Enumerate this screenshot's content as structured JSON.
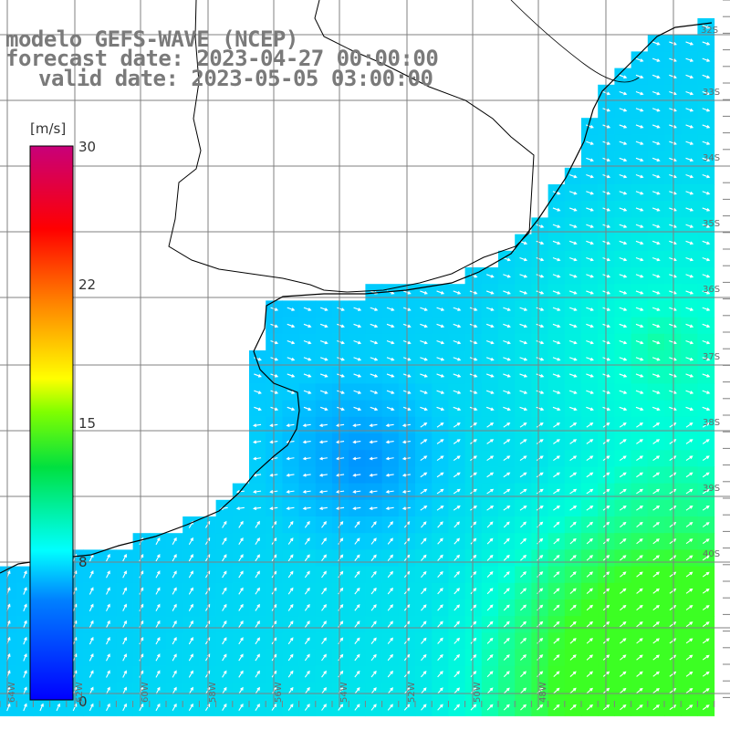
{
  "title": {
    "model": "modelo GEFS-WAVE (NCEP)",
    "forecast": "forecast date: 2023-04-27 00:00:00",
    "valid": "valid date: 2023-05-05 03:00:00"
  },
  "colorbar": {
    "unit": "[m/s]",
    "ticks": [
      "30",
      "22",
      "15",
      "8",
      "0"
    ],
    "range": [
      0,
      30
    ],
    "colors": [
      "#0000ff",
      "#00aaff",
      "#00ffff",
      "#00ff00",
      "#ffff00",
      "#ff8000",
      "#ff0000",
      "#c8007a"
    ]
  },
  "map": {
    "lat_labels": [
      "32S",
      "33S",
      "34S",
      "35S",
      "36S",
      "37S",
      "38S",
      "39S",
      "40S"
    ],
    "lon_labels": [
      "64W",
      "62W",
      "60W",
      "58W",
      "56W",
      "54W",
      "52W",
      "50W",
      "48W"
    ],
    "land_color": "#ffffff",
    "grid_color": "#808080",
    "coast_color": "#000000"
  }
}
